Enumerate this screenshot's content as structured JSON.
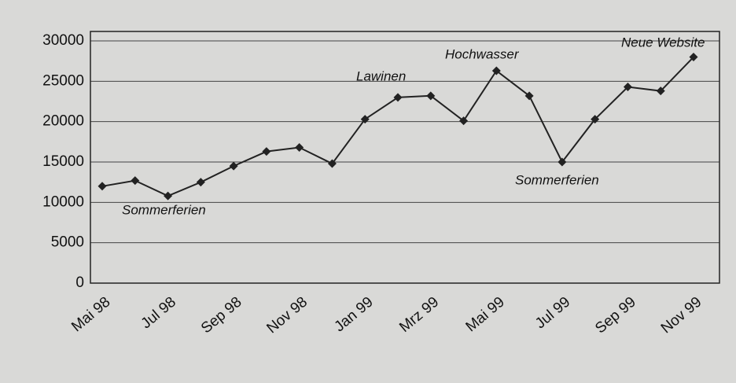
{
  "chart_data": {
    "type": "line",
    "categories": [
      "Mai 98",
      null,
      "Jul 98",
      null,
      "Sep 98",
      null,
      "Nov 98",
      null,
      "Jan 99",
      null,
      "Mrz 99",
      null,
      "Mai 99",
      null,
      "Jul 99",
      null,
      "Sep 99",
      null,
      "Nov 99"
    ],
    "values": [
      12000,
      12700,
      10800,
      12500,
      14500,
      16300,
      16800,
      14800,
      20300,
      23000,
      23200,
      20100,
      26300,
      23200,
      15000,
      20300,
      24300,
      23800,
      28000
    ],
    "color": "#222222",
    "ylim": [
      0,
      30000
    ],
    "yticks": [
      0,
      5000,
      10000,
      15000,
      20000,
      25000,
      30000
    ],
    "grid": true,
    "annotations": [
      "Sommerferien",
      "Lawinen",
      "Hochwasser",
      "Sommerferien",
      "Neue Website"
    ]
  }
}
